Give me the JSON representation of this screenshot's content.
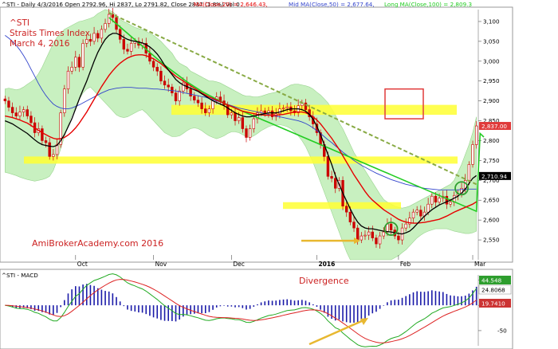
{
  "header": {
    "symbol_line": "^STI - Daily 4/3/2016 Open 2792.96, Hi 2837, Lo 2791.82, Close 2837 (1.8%) Vol 0",
    "ma20_label": "MA(Close,20) = 2,646.43,",
    "ma50_label": "Mid MA(Close,50) = 2,677.64,",
    "ma100_label": "Long MA(Close,100) = 2,809.3"
  },
  "annotations": {
    "title_lines": [
      "^STI",
      "Straits Times Index",
      "March 4, 2016"
    ],
    "watermark": "AmiBrokerAcademy.com  2016",
    "divergence": "Divergence"
  },
  "colors": {
    "candle": "#cc0000",
    "ma20": "#e60000",
    "ma50": "#3344cc",
    "ma100": "#22cc22",
    "short_ma": "#000000",
    "band_fill": "#c8f0c0",
    "highlight": "#ffff33",
    "trendline": "#88aa44",
    "macd_hist": "#1a1aa8",
    "macd_line": "#22aa22",
    "signal_line": "#dd2222",
    "label_green": "#2e9e2e",
    "label_red": "#cc3333",
    "arrow": "#e8b830"
  },
  "chart_data": [
    {
      "type": "candlestick",
      "ylim": [
        2500,
        3130
      ],
      "y_ticks": [
        2550,
        2600,
        2650,
        2700,
        2750,
        2800,
        2850,
        2900,
        2950,
        3000,
        3050,
        3100
      ],
      "y_tick_labels": [
        "2,550",
        "2,600",
        "2,650",
        "2,700",
        "2,750",
        "2,800",
        "2,850",
        "2,900",
        "2,950",
        "3,000",
        "3,050",
        "3,100"
      ],
      "x_labels": [
        "Oct",
        "Nov",
        "Dec",
        "2016",
        "Feb",
        "Mar"
      ],
      "x_label_index": [
        19,
        40,
        61,
        84,
        106,
        126
      ],
      "n_bars": 128,
      "closes": [
        2900,
        2884,
        2870,
        2862,
        2872,
        2878,
        2862,
        2845,
        2820,
        2830,
        2800,
        2795,
        2760,
        2765,
        2790,
        2870,
        2930,
        2975,
        2985,
        3010,
        2985,
        3045,
        3055,
        3050,
        3070,
        3058,
        3080,
        3095,
        3118,
        3110,
        3080,
        3055,
        3030,
        3025,
        3045,
        3050,
        3040,
        3045,
        3020,
        3000,
        2985,
        2975,
        2950,
        2940,
        2935,
        2920,
        2900,
        2925,
        2945,
        2930,
        2912,
        2902,
        2895,
        2880,
        2870,
        2880,
        2900,
        2910,
        2900,
        2890,
        2865,
        2870,
        2850,
        2858,
        2830,
        2808,
        2830,
        2855,
        2870,
        2875,
        2870,
        2875,
        2860,
        2868,
        2880,
        2882,
        2885,
        2875,
        2870,
        2888,
        2895,
        2878,
        2860,
        2842,
        2820,
        2790,
        2760,
        2710,
        2705,
        2680,
        2700,
        2635,
        2620,
        2595,
        2580,
        2550,
        2560,
        2562,
        2570,
        2555,
        2540,
        2560,
        2570,
        2590,
        2575,
        2560,
        2550,
        2580,
        2590,
        2605,
        2620,
        2625,
        2610,
        2620,
        2640,
        2660,
        2645,
        2655,
        2660,
        2640,
        2645,
        2662,
        2665,
        2680,
        2700,
        2740,
        2790,
        2837
      ],
      "band_upper": [
        2930,
        2932,
        2930,
        2928,
        2930,
        2935,
        2942,
        2948,
        2955,
        2968,
        2985,
        3005,
        3025,
        3045,
        3060,
        3070,
        3080,
        3085,
        3090,
        3095,
        3100,
        3102,
        3105,
        3108,
        3112,
        3120,
        3125,
        3130,
        3128,
        3125,
        3115,
        3105,
        3100,
        3095,
        3090,
        3085,
        3082,
        3080,
        3075,
        3070,
        3065,
        3058,
        3050,
        3040,
        3030,
        3020,
        3005,
        2995,
        2990,
        2985,
        2975,
        2970,
        2965,
        2960,
        2955,
        2950,
        2950,
        2948,
        2945,
        2940,
        2935,
        2930,
        2925,
        2920,
        2915,
        2912,
        2912,
        2910,
        2910,
        2912,
        2915,
        2918,
        2920,
        2922,
        2925,
        2930,
        2935,
        2940,
        2942,
        2942,
        2940,
        2938,
        2935,
        2930,
        2922,
        2915,
        2905,
        2895,
        2880,
        2865,
        2845,
        2830,
        2810,
        2790,
        2770,
        2755,
        2740,
        2725,
        2710,
        2695,
        2680,
        2665,
        2652,
        2645,
        2640,
        2635,
        2632,
        2630,
        2632,
        2635,
        2640,
        2645,
        2650,
        2655,
        2660,
        2665,
        2670,
        2675,
        2680,
        2685,
        2690,
        2700,
        2720,
        2740,
        2765,
        2790,
        2820,
        2860
      ],
      "band_lower": [
        2720,
        2718,
        2715,
        2712,
        2708,
        2705,
        2702,
        2700,
        2698,
        2700,
        2702,
        2705,
        2710,
        2725,
        2750,
        2780,
        2810,
        2840,
        2865,
        2885,
        2905,
        2920,
        2930,
        2935,
        2925,
        2915,
        2905,
        2895,
        2885,
        2875,
        2865,
        2860,
        2858,
        2860,
        2865,
        2870,
        2875,
        2878,
        2870,
        2860,
        2850,
        2840,
        2830,
        2820,
        2815,
        2810,
        2810,
        2812,
        2818,
        2825,
        2830,
        2832,
        2830,
        2825,
        2818,
        2812,
        2808,
        2805,
        2808,
        2812,
        2818,
        2822,
        2822,
        2820,
        2815,
        2810,
        2808,
        2812,
        2818,
        2825,
        2830,
        2835,
        2838,
        2840,
        2840,
        2838,
        2835,
        2830,
        2822,
        2812,
        2800,
        2785,
        2765,
        2745,
        2720,
        2695,
        2670,
        2645,
        2620,
        2595,
        2570,
        2545,
        2520,
        2500,
        2500,
        2500,
        2500,
        2500,
        2500,
        2500,
        2500,
        2500,
        2500,
        2500,
        2500,
        2505,
        2510,
        2518,
        2525,
        2535,
        2545,
        2555,
        2562,
        2568,
        2572,
        2575,
        2578,
        2578,
        2578,
        2578,
        2575,
        2572,
        2570,
        2568,
        2566,
        2566,
        2568,
        2572
      ],
      "ma_short": [
        2850,
        2846,
        2842,
        2836,
        2830,
        2824,
        2818,
        2810,
        2802,
        2795,
        2790,
        2788,
        2786,
        2785,
        2788,
        2800,
        2815,
        2835,
        2855,
        2880,
        2905,
        2928,
        2950,
        2975,
        3000,
        3022,
        3040,
        3055,
        3065,
        3070,
        3070,
        3066,
        3060,
        3055,
        3052,
        3050,
        3048,
        3046,
        3042,
        3036,
        3028,
        3018,
        3005,
        2990,
        2978,
        2966,
        2954,
        2946,
        2940,
        2936,
        2932,
        2928,
        2924,
        2918,
        2912,
        2906,
        2900,
        2896,
        2892,
        2888,
        2882,
        2876,
        2870,
        2866,
        2862,
        2860,
        2860,
        2862,
        2864,
        2866,
        2868,
        2870,
        2870,
        2870,
        2872,
        2875,
        2878,
        2880,
        2880,
        2880,
        2878,
        2874,
        2866,
        2854,
        2836,
        2815,
        2790,
        2765,
        2740,
        2712,
        2690,
        2668,
        2648,
        2628,
        2610,
        2595,
        2585,
        2580,
        2578,
        2578,
        2576,
        2574,
        2572,
        2571,
        2570,
        2568,
        2566,
        2565,
        2568,
        2572,
        2580,
        2590,
        2600,
        2610,
        2618,
        2626,
        2632,
        2638,
        2642,
        2646,
        2650,
        2655,
        2660,
        2668,
        2678,
        2692,
        2705,
        2712
      ],
      "ma20": [
        2862,
        2860,
        2858,
        2855,
        2852,
        2848,
        2844,
        2838,
        2832,
        2826,
        2820,
        2815,
        2810,
        2806,
        2804,
        2805,
        2808,
        2814,
        2822,
        2832,
        2844,
        2858,
        2872,
        2888,
        2904,
        2920,
        2936,
        2950,
        2964,
        2976,
        2986,
        2995,
        3002,
        3008,
        3012,
        3015,
        3016,
        3016,
        3014,
        3010,
        3006,
        3000,
        2994,
        2986,
        2978,
        2970,
        2962,
        2956,
        2950,
        2944,
        2938,
        2932,
        2926,
        2920,
        2915,
        2910,
        2906,
        2902,
        2898,
        2894,
        2890,
        2886,
        2882,
        2878,
        2874,
        2872,
        2870,
        2868,
        2866,
        2865,
        2864,
        2864,
        2864,
        2864,
        2865,
        2866,
        2868,
        2870,
        2872,
        2872,
        2872,
        2870,
        2866,
        2860,
        2852,
        2842,
        2830,
        2818,
        2806,
        2792,
        2778,
        2762,
        2746,
        2730,
        2714,
        2700,
        2686,
        2672,
        2660,
        2650,
        2642,
        2634,
        2626,
        2620,
        2614,
        2608,
        2602,
        2598,
        2595,
        2593,
        2592,
        2592,
        2593,
        2594,
        2596,
        2598,
        2600,
        2602,
        2606,
        2610,
        2615,
        2620,
        2624,
        2628,
        2632,
        2636,
        2640,
        2646
      ],
      "ma50": [
        3065,
        3058,
        3050,
        3040,
        3028,
        3014,
        2998,
        2980,
        2962,
        2944,
        2928,
        2914,
        2902,
        2892,
        2886,
        2882,
        2880,
        2880,
        2882,
        2886,
        2890,
        2895,
        2900,
        2905,
        2910,
        2915,
        2920,
        2924,
        2928,
        2930,
        2932,
        2933,
        2934,
        2934,
        2934,
        2933,
        2932,
        2932,
        2932,
        2931,
        2930,
        2930,
        2929,
        2928,
        2927,
        2926,
        2925,
        2923,
        2921,
        2919,
        2917,
        2915,
        2913,
        2911,
        2909,
        2906,
        2903,
        2900,
        2897,
        2894,
        2891,
        2888,
        2885,
        2882,
        2880,
        2878,
        2876,
        2874,
        2872,
        2870,
        2868,
        2866,
        2864,
        2862,
        2860,
        2858,
        2856,
        2854,
        2852,
        2850,
        2847,
        2843,
        2838,
        2832,
        2825,
        2818,
        2810,
        2802,
        2795,
        2787,
        2779,
        2771,
        2764,
        2757,
        2750,
        2744,
        2738,
        2733,
        2728,
        2723,
        2718,
        2714,
        2710,
        2706,
        2702,
        2699,
        2696,
        2693,
        2690,
        2688,
        2686,
        2684,
        2682,
        2680,
        2679,
        2678,
        2677,
        2676,
        2676,
        2676,
        2676,
        2676,
        2676,
        2677,
        2677,
        2678,
        2678,
        2678
      ],
      "ma100": [
        null,
        null,
        null,
        null,
        null,
        null,
        null,
        null,
        null,
        null,
        null,
        null,
        null,
        null,
        null,
        null,
        null,
        null,
        null,
        null,
        null,
        null,
        null,
        null,
        null,
        null,
        null,
        null,
        3110,
        3102,
        3094,
        3086,
        3078,
        3070,
        3062,
        3054,
        3046,
        3038,
        3030,
        3022,
        3014,
        3006,
        2998,
        2990,
        2983,
        2976,
        2969,
        2962,
        2955,
        2948,
        2942,
        2936,
        2930,
        2924,
        2919,
        2914,
        2909,
        2904,
        2899,
        2894,
        2890,
        2886,
        2882,
        2878,
        2874,
        2870,
        2866,
        2862,
        2858,
        2854,
        2850,
        2846,
        2842,
        2838,
        2834,
        2830,
        2826,
        2822,
        2818,
        2814,
        2810,
        2806,
        2802,
        2798,
        2794,
        2790,
        2786,
        2782,
        2778,
        2774,
        2770,
        2766,
        2762,
        2758,
        2754,
        2750,
        2746,
        2742,
        2738,
        2734,
        2730,
        2726,
        2722,
        2718,
        2714,
        2710,
        2706,
        2702,
        2698,
        2694,
        2690,
        2686,
        2682,
        2678,
        2674,
        2670,
        2666,
        2662,
        2658,
        2654,
        2650,
        2646,
        2642,
        2638,
        2634,
        2630,
        2626,
        2622,
        2818,
        2809
      ]
    },
    {
      "type": "bar+line",
      "name": "^STI - MACD",
      "value_labels": [
        "44.548",
        "24.8068",
        "19.7410"
      ],
      "y_ticks": [
        50,
        0,
        -50
      ],
      "ylim": [
        -80,
        60
      ]
    }
  ]
}
